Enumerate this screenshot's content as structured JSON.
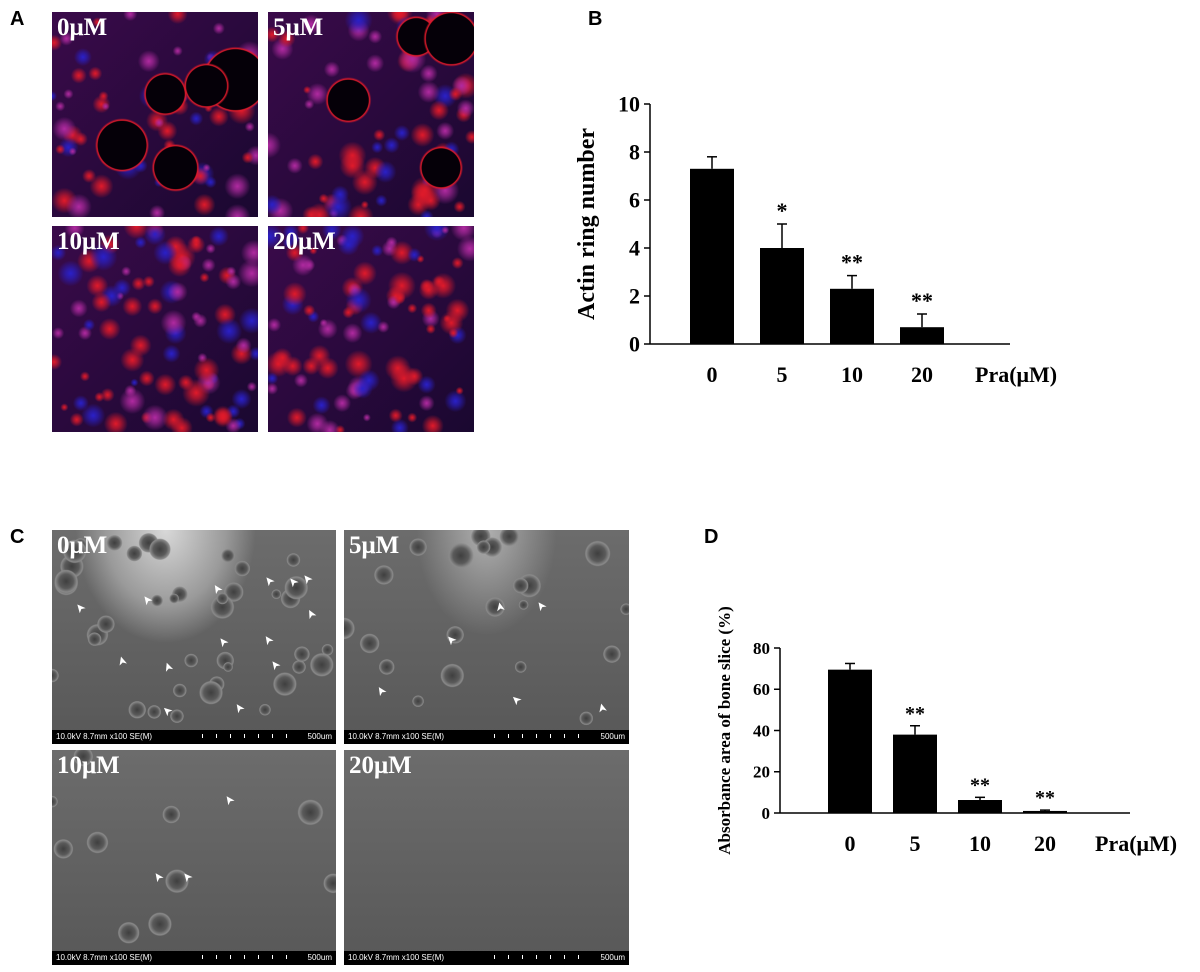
{
  "panels": {
    "a": {
      "letter": "A",
      "tiles": [
        {
          "label": "0μM",
          "kind": "fluor-large-holes"
        },
        {
          "label": "5μM",
          "kind": "fluor-medium-holes"
        },
        {
          "label": "10μM",
          "kind": "fluor-dense"
        },
        {
          "label": "20μM",
          "kind": "fluor-dense"
        }
      ]
    },
    "c": {
      "letter": "C",
      "tiles": [
        {
          "label": "0μM",
          "arrows": 14
        },
        {
          "label": "5μM",
          "arrows": 6
        },
        {
          "label": "10μM",
          "arrows": 3
        },
        {
          "label": "20μM",
          "arrows": 0
        }
      ],
      "sem_info": "10.0kV 8.7mm x100 SE(M)",
      "scale_label": "500um"
    },
    "b": {
      "letter": "B"
    },
    "d": {
      "letter": "D"
    }
  },
  "colors": {
    "fluor_red": "#e01a2a",
    "fluor_blue": "#2a20c8",
    "fluor_magenta": "#b02aa0",
    "sem_gray": "#6a6a6a",
    "bar": "#000000"
  },
  "chart_data": [
    {
      "panel": "B",
      "type": "bar",
      "categories": [
        "0",
        "5",
        "10",
        "20"
      ],
      "values": [
        7.3,
        4.0,
        2.3,
        0.7
      ],
      "errors": [
        0.5,
        1.0,
        0.55,
        0.55
      ],
      "significance": [
        "",
        "*",
        "**",
        "**"
      ],
      "ylabel": "Actin ring number",
      "xunit": "Pra(μM)",
      "ylim": [
        0,
        10
      ],
      "yticks": [
        "0",
        "2",
        "4",
        "6",
        "8",
        "10"
      ]
    },
    {
      "panel": "D",
      "type": "bar",
      "categories": [
        "0",
        "5",
        "10",
        "20"
      ],
      "values": [
        69.5,
        38.0,
        6.3,
        1.0
      ],
      "errors": [
        3.0,
        4.3,
        1.3,
        0.4
      ],
      "significance": [
        "",
        "**",
        "**",
        "**"
      ],
      "ylabel": "Absorbance area of bone slice (%)",
      "xunit": "Pra(μM)",
      "ylim": [
        0,
        80
      ],
      "yticks": [
        "0",
        "20",
        "40",
        "60",
        "80"
      ]
    }
  ]
}
